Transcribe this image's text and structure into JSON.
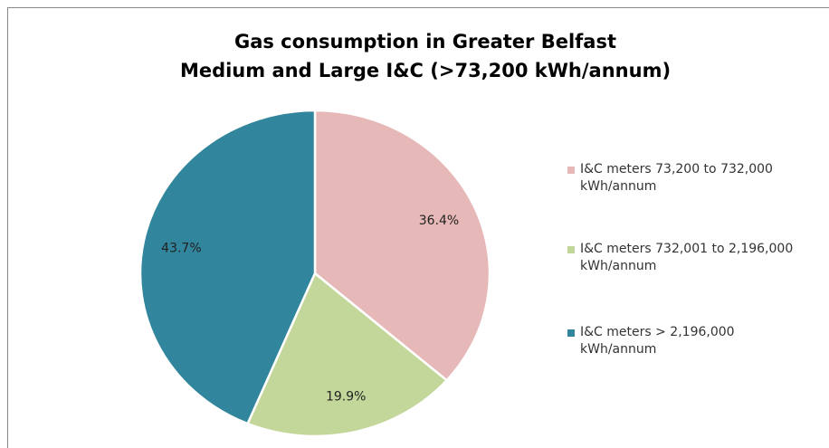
{
  "chart_data": {
    "type": "pie",
    "title": [
      "Gas consumption in Greater Belfast",
      "Medium and Large I&C (>73,200 kWh/annum)"
    ],
    "categories": [
      "I&C meters 73,200 to 732,000 kWh/annum",
      "I&C meters 732,001 to 2,196,000 kWh/annum",
      "I&C meters > 2,196,000 kWh/annum"
    ],
    "values": [
      36.4,
      19.9,
      43.7
    ],
    "value_labels": [
      "36.4%",
      "19.9%",
      "43.7%"
    ],
    "colors": [
      "#e6b8b7",
      "#c4d79b",
      "#31859c"
    ],
    "legend": "right"
  }
}
